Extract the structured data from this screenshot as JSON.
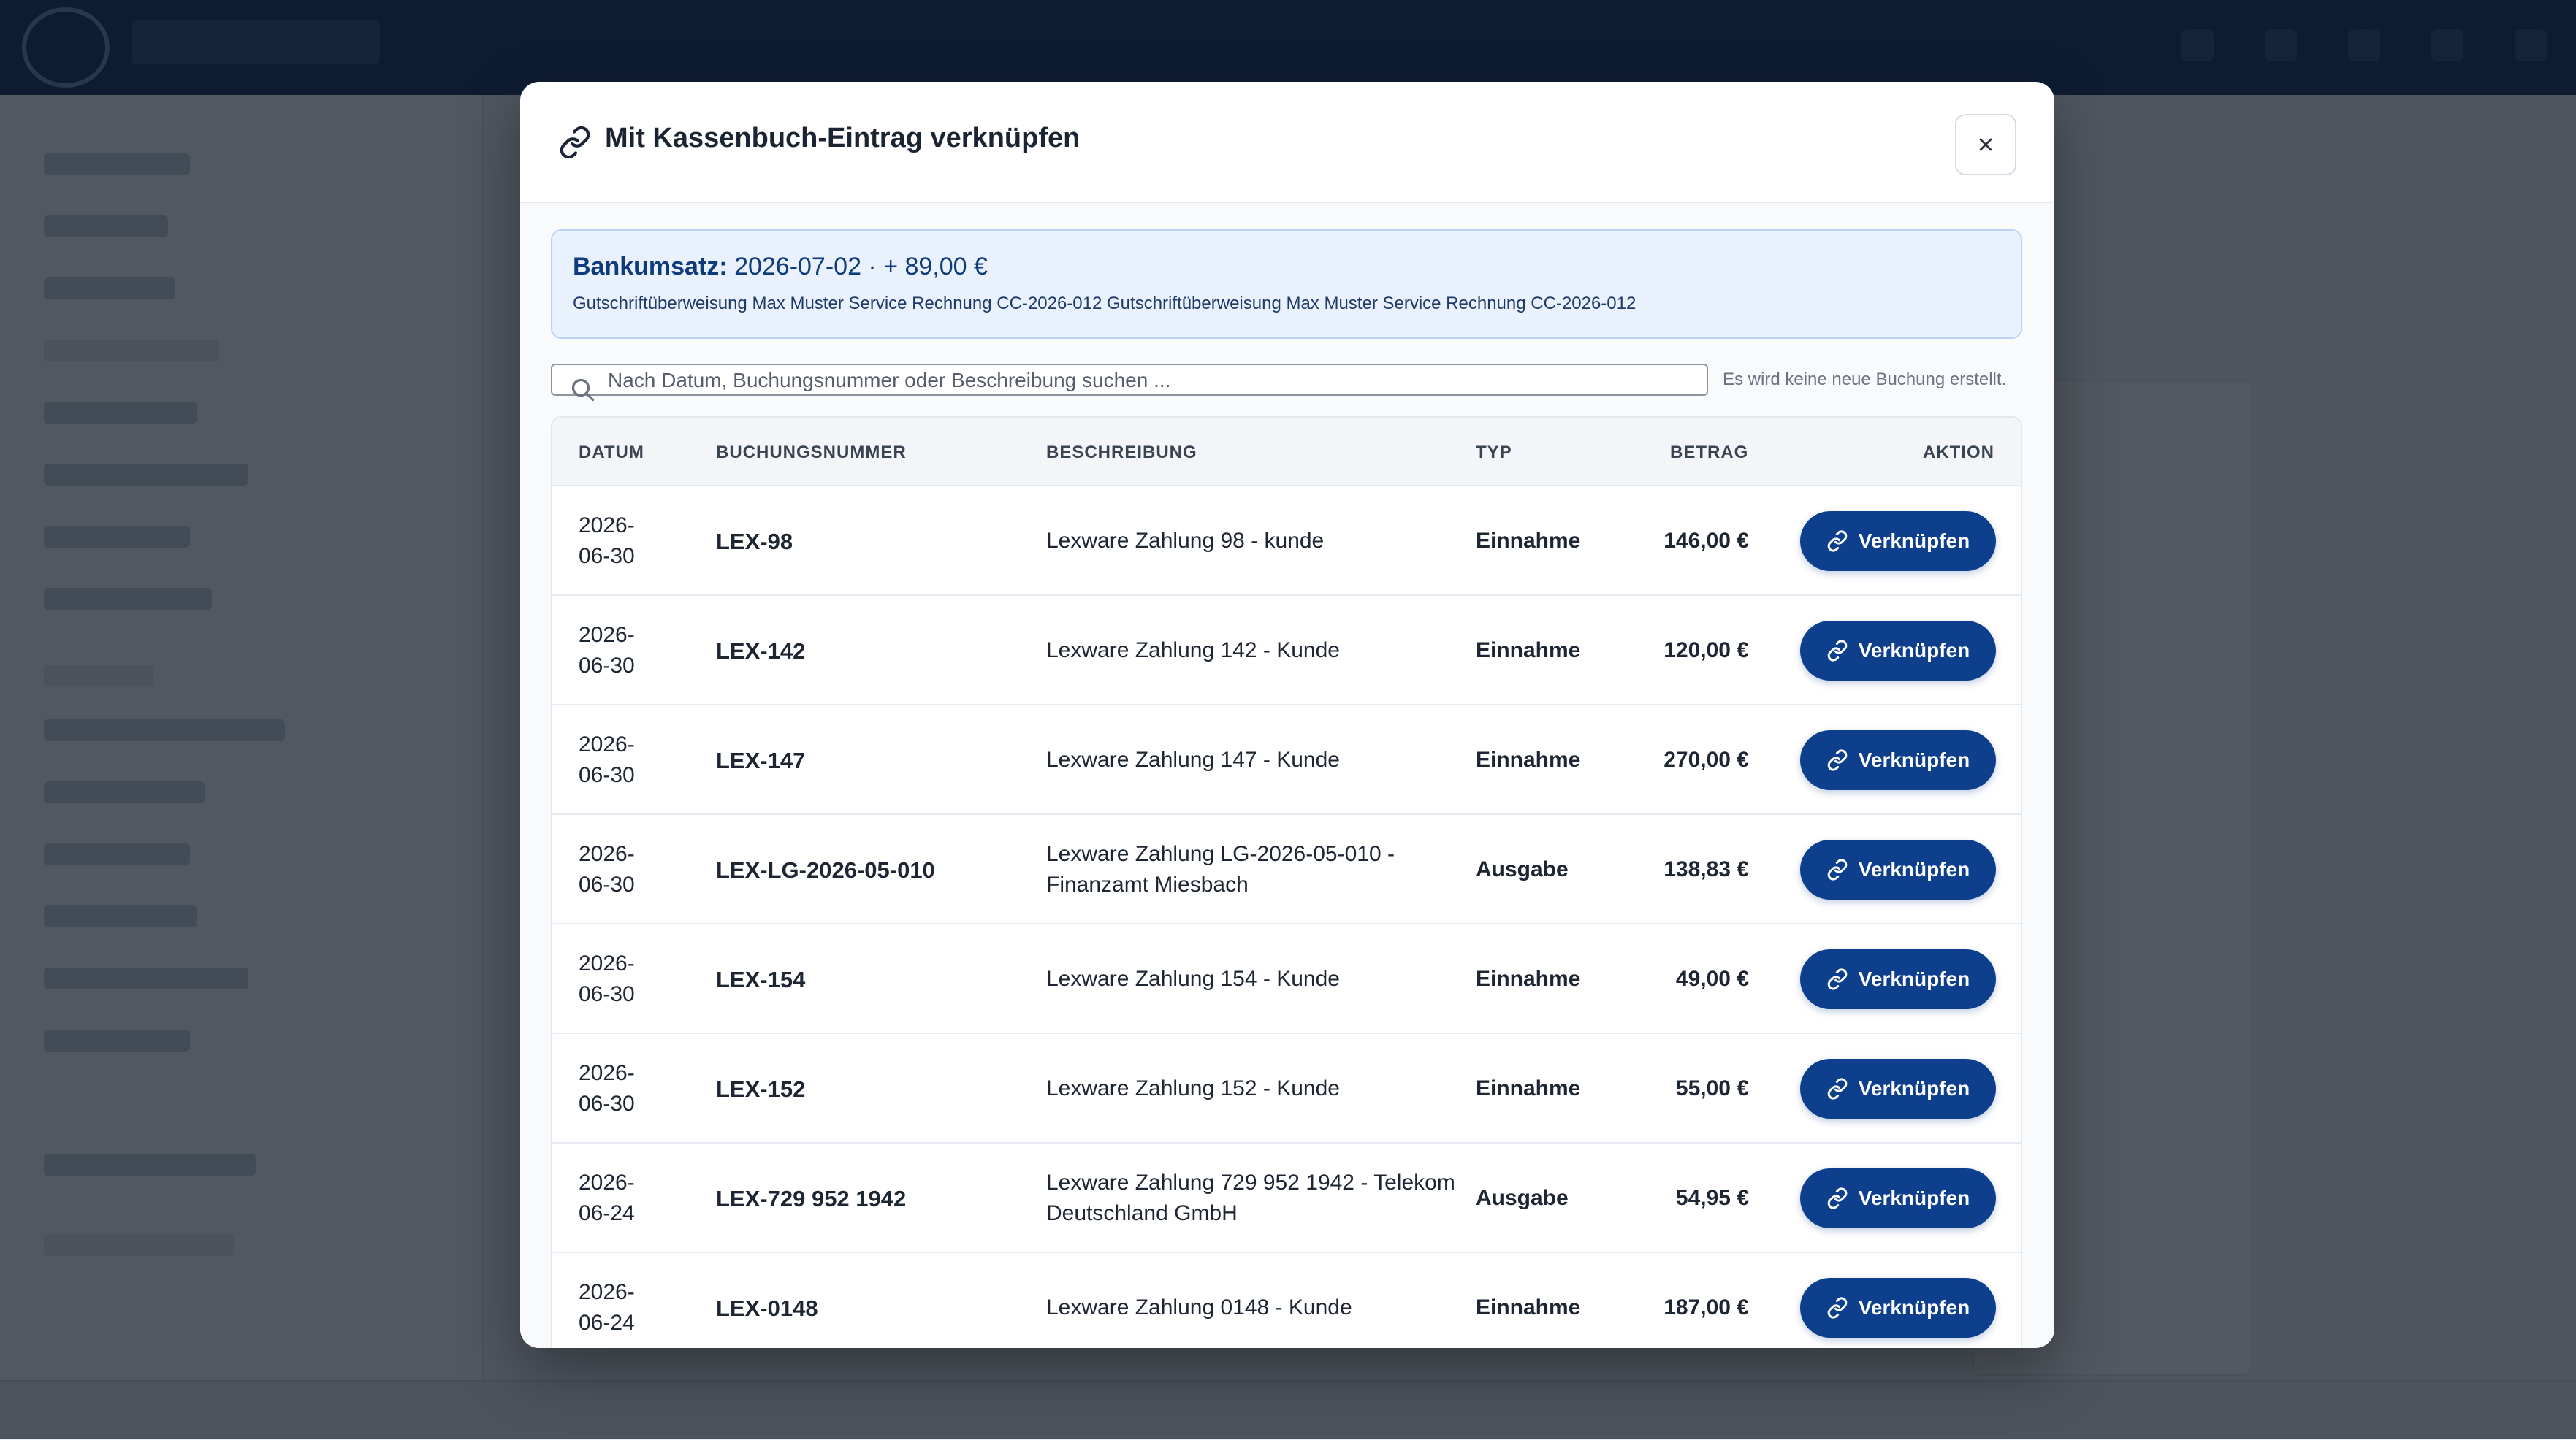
{
  "modal": {
    "title": "Mit Kassenbuch-Eintrag verknüpfen",
    "close_label": "×",
    "bank_label": "Bankumsatz:",
    "bank_value": "2026-07-02 · + 89,00 €",
    "bank_purpose": "Gutschriftüberweisung Max Muster Service Rechnung CC-2026-012 Gutschriftüberweisung Max Muster Service Rechnung CC-2026-012",
    "search_placeholder": "Nach Datum, Buchungsnummer oder Beschreibung suchen ...",
    "search_hint": "Es wird keine neue Buchung erstellt.",
    "columns": {
      "date": "DATUM",
      "number": "BUCHUNGSNUMMER",
      "description": "BESCHREIBUNG",
      "type": "TYP",
      "amount": "BETRAG",
      "action": "AKTION"
    },
    "rows": [
      {
        "date": "2026-06-30",
        "number": "LEX-98",
        "description": "Lexware Zahlung 98 - kunde",
        "type": "Einnahme",
        "amount": "146,00 €",
        "action": "Verknüpfen"
      },
      {
        "date": "2026-06-30",
        "number": "LEX-142",
        "description": "Lexware Zahlung 142 - Kunde",
        "type": "Einnahme",
        "amount": "120,00 €",
        "action": "Verknüpfen"
      },
      {
        "date": "2026-06-30",
        "number": "LEX-147",
        "description": "Lexware Zahlung 147 - Kunde",
        "type": "Einnahme",
        "amount": "270,00 €",
        "action": "Verknüpfen"
      },
      {
        "date": "2026-06-30",
        "number": "LEX-LG-2026-05-010",
        "description": "Lexware Zahlung LG-2026-05-010 - Finanzamt Miesbach",
        "type": "Ausgabe",
        "amount": "138,83 €",
        "action": "Verknüpfen"
      },
      {
        "date": "2026-06-30",
        "number": "LEX-154",
        "description": "Lexware Zahlung 154 - Kunde",
        "type": "Einnahme",
        "amount": "49,00 €",
        "action": "Verknüpfen"
      },
      {
        "date": "2026-06-30",
        "number": "LEX-152",
        "description": "Lexware Zahlung 152 - Kunde",
        "type": "Einnahme",
        "amount": "55,00 €",
        "action": "Verknüpfen"
      },
      {
        "date": "2026-06-24",
        "number": "LEX-729 952 1942",
        "description": "Lexware Zahlung 729 952 1942 - Telekom Deutschland GmbH",
        "type": "Ausgabe",
        "amount": "54,95 €",
        "action": "Verknüpfen"
      },
      {
        "date": "2026-06-24",
        "number": "LEX-0148",
        "description": "Lexware Zahlung 0148 - Kunde",
        "type": "Einnahme",
        "amount": "187,00 €",
        "action": "Verknüpfen"
      }
    ]
  }
}
